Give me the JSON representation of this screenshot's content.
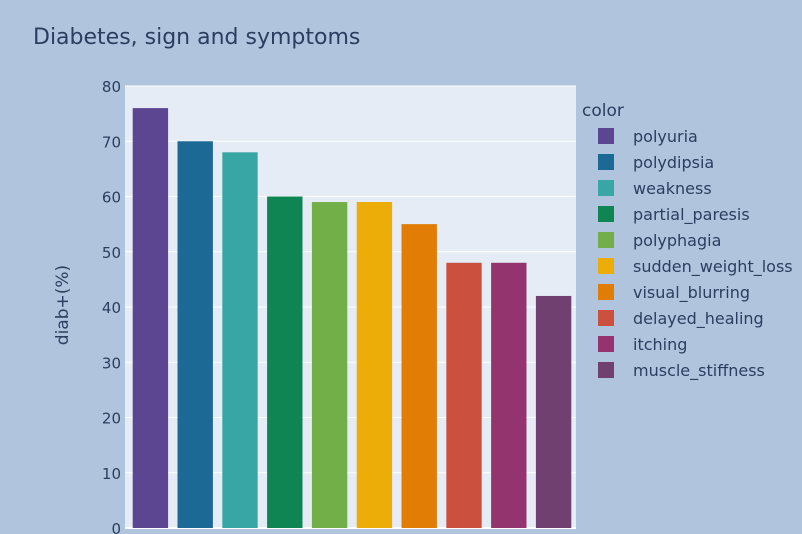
{
  "chart_data": {
    "type": "bar",
    "title": "Diabetes, sign and symptoms",
    "xlabel": "",
    "ylabel": "diab+(%)",
    "ylim": [
      0,
      80
    ],
    "yticks": [
      0,
      10,
      20,
      30,
      40,
      50,
      60,
      70,
      80
    ],
    "grid": true,
    "legend_title": "color",
    "legend_position": "right",
    "series": [
      {
        "name": "polyuria",
        "value": 76,
        "color": "#5d4691"
      },
      {
        "name": "polydipsia",
        "value": 70,
        "color": "#1d6996"
      },
      {
        "name": "weakness",
        "value": 68,
        "color": "#38a6a5"
      },
      {
        "name": "partial_paresis",
        "value": 60,
        "color": "#0f8554"
      },
      {
        "name": "polyphagia",
        "value": 59,
        "color": "#73af48"
      },
      {
        "name": "sudden_weight_loss",
        "value": 59,
        "color": "#edad08"
      },
      {
        "name": "visual_blurring",
        "value": 55,
        "color": "#e17c05"
      },
      {
        "name": "delayed_healing",
        "value": 48,
        "color": "#cc503e"
      },
      {
        "name": "itching",
        "value": 48,
        "color": "#94346e"
      },
      {
        "name": "muscle_stiffness",
        "value": 42,
        "color": "#6f4070"
      }
    ],
    "colors": {
      "page_background": "#b0c4de",
      "plot_background": "#e5ecf6",
      "gridline": "#ffffff",
      "text": "#2a3f5f"
    }
  }
}
